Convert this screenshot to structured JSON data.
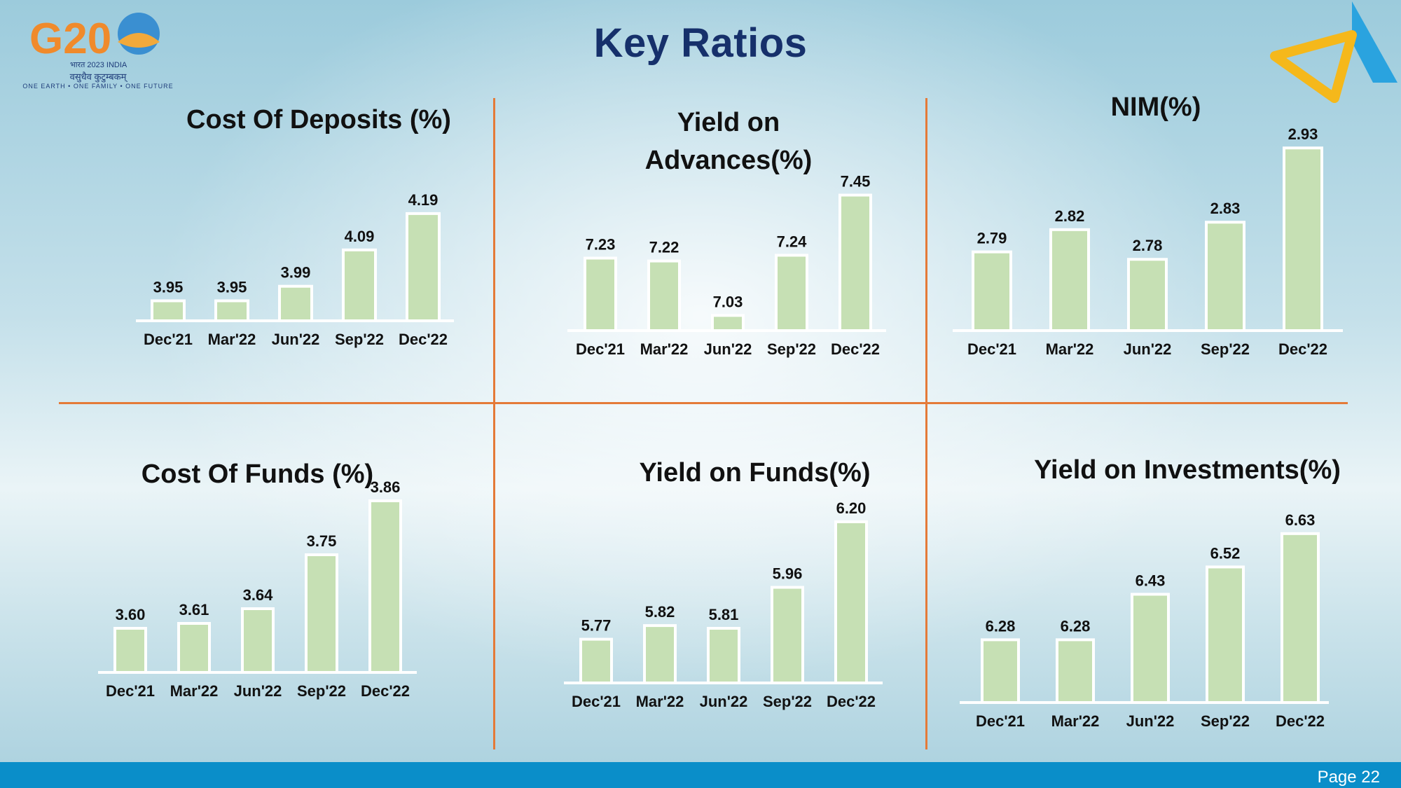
{
  "page": {
    "title": "Key Ratios",
    "page_label": "Page 22"
  },
  "logos": {
    "g20_text": "G20",
    "g20_year": "भारत 2023 INDIA",
    "g20_hindi": "वसुधैव कुटुम्बकम्",
    "g20_tagline": "ONE EARTH • ONE FAMILY • ONE FUTURE"
  },
  "panels": [
    {
      "title_lines": [
        "Cost Of Deposits (%)"
      ]
    },
    {
      "title_lines": [
        "Yield on",
        "Advances(%)"
      ]
    },
    {
      "title_lines": [
        "NIM(%)"
      ]
    },
    {
      "title_lines": [
        "Cost Of Funds (%)"
      ]
    },
    {
      "title_lines": [
        "Yield on Funds(%)"
      ]
    },
    {
      "title_lines": [
        "Yield on Investments(%)"
      ]
    }
  ],
  "colors": {
    "bar_fill": "#c6e0b4",
    "divider": "#e47a38",
    "title": "#16306b",
    "footer": "#0a8ec9"
  },
  "chart_data": [
    {
      "type": "bar",
      "title": "Cost Of Deposits (%)",
      "categories": [
        "Dec'21",
        "Mar'22",
        "Jun'22",
        "Sep'22",
        "Dec'22"
      ],
      "values": [
        3.95,
        3.95,
        3.99,
        4.09,
        4.19
      ],
      "value_labels": [
        "3.95",
        "3.95",
        "3.99",
        "4.09",
        "4.19"
      ]
    },
    {
      "type": "bar",
      "title": "Yield on Advances(%)",
      "categories": [
        "Dec'21",
        "Mar'22",
        "Jun'22",
        "Sep'22",
        "Dec'22"
      ],
      "values": [
        7.23,
        7.22,
        7.03,
        7.24,
        7.45
      ],
      "value_labels": [
        "7.23",
        "7.22",
        "7.03",
        "7.24",
        "7.45"
      ]
    },
    {
      "type": "bar",
      "title": "NIM(%)",
      "categories": [
        "Dec'21",
        "Mar'22",
        "Jun'22",
        "Sep'22",
        "Dec'22"
      ],
      "values": [
        2.79,
        2.82,
        2.78,
        2.83,
        2.93
      ],
      "value_labels": [
        "2.79",
        "2.82",
        "2.78",
        "2.83",
        "2.93"
      ]
    },
    {
      "type": "bar",
      "title": "Cost Of Funds (%)",
      "categories": [
        "Dec'21",
        "Mar'22",
        "Jun'22",
        "Sep'22",
        "Dec'22"
      ],
      "values": [
        3.6,
        3.61,
        3.64,
        3.75,
        3.86
      ],
      "value_labels": [
        "3.60",
        "3.61",
        "3.64",
        "3.75",
        "3.86"
      ]
    },
    {
      "type": "bar",
      "title": "Yield on Funds(%)",
      "categories": [
        "Dec'21",
        "Mar'22",
        "Jun'22",
        "Sep'22",
        "Dec'22"
      ],
      "values": [
        5.77,
        5.82,
        5.81,
        5.96,
        6.2
      ],
      "value_labels": [
        "5.77",
        "5.82",
        "5.81",
        "5.96",
        "6.20"
      ]
    },
    {
      "type": "bar",
      "title": "Yield on Investments(%)",
      "categories": [
        "Dec'21",
        "Mar'22",
        "Jun'22",
        "Sep'22",
        "Dec'22"
      ],
      "values": [
        6.28,
        6.28,
        6.43,
        6.52,
        6.63
      ],
      "value_labels": [
        "6.28",
        "6.28",
        "6.43",
        "6.52",
        "6.63"
      ]
    }
  ]
}
